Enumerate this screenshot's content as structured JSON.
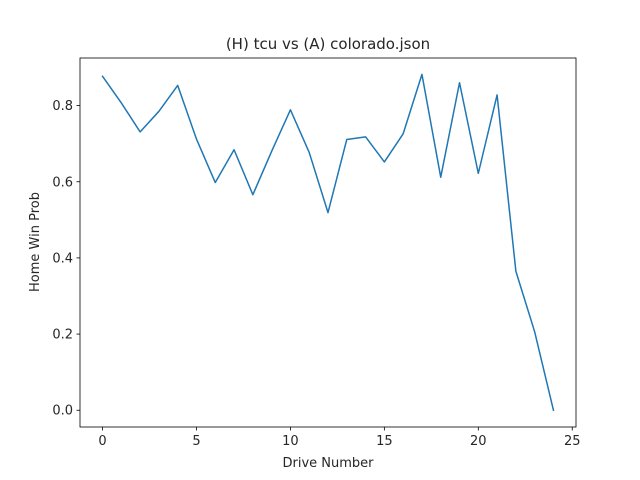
{
  "chart_data": {
    "type": "line",
    "title": "(H) tcu vs (A) colorado.json",
    "xlabel": "Drive Number",
    "ylabel": "Home Win Prob",
    "xlim": [
      -1.2,
      25.2
    ],
    "ylim": [
      -0.044,
      0.925
    ],
    "xticks": [
      0,
      5,
      10,
      15,
      20,
      25
    ],
    "yticks": [
      0.0,
      0.2,
      0.4,
      0.6,
      0.8
    ],
    "ytick_labels": [
      "0.0",
      "0.2",
      "0.4",
      "0.6",
      "0.8"
    ],
    "grid": false,
    "color": "#1f77b4",
    "x": [
      0,
      1,
      2,
      3,
      4,
      5,
      6,
      7,
      8,
      9,
      10,
      11,
      12,
      13,
      14,
      15,
      16,
      17,
      18,
      19,
      20,
      21,
      22,
      23,
      24
    ],
    "y": [
      0.877,
      0.807,
      0.731,
      0.785,
      0.853,
      0.712,
      0.598,
      0.684,
      0.566,
      0.68,
      0.789,
      0.677,
      0.519,
      0.711,
      0.718,
      0.652,
      0.726,
      0.882,
      0.612,
      0.86,
      0.622,
      0.828,
      0.365,
      0.206,
      0.0
    ]
  }
}
